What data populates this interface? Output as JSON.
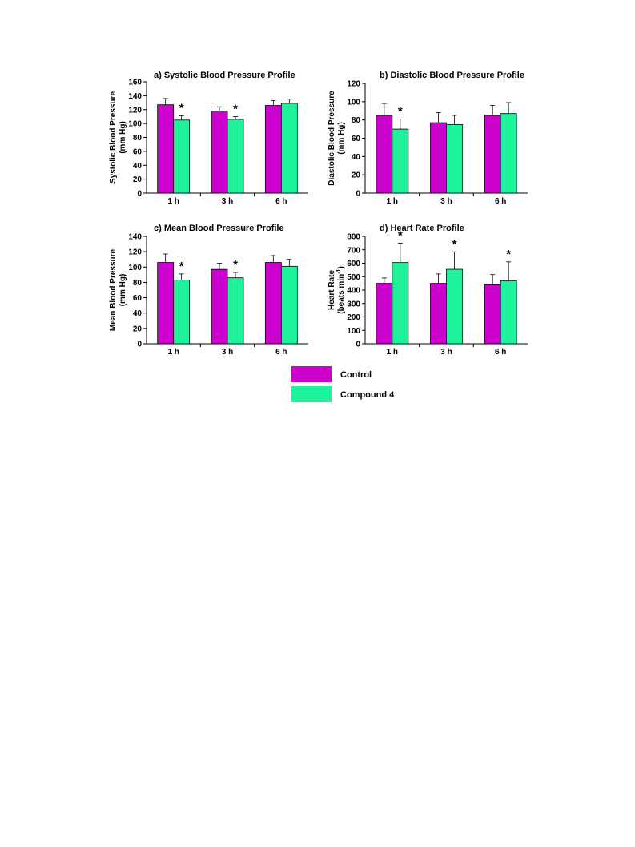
{
  "colors": {
    "control": "#cc00cc",
    "compound4": "#1ef29a"
  },
  "chart_data": [
    {
      "type": "bar",
      "title": "a)  Systolic Blood Pressure Profile",
      "ylabel": [
        "Systolic Blood Pressure",
        "(mm Hg)"
      ],
      "categories": [
        "1 h",
        "3 h",
        "6 h"
      ],
      "ylim": [
        0,
        160
      ],
      "ytick_step": 20,
      "series": [
        {
          "name": "Control",
          "values": [
            127,
            118,
            126
          ],
          "errors": [
            9,
            6,
            7
          ]
        },
        {
          "name": "Compound 4",
          "values": [
            105,
            106,
            129
          ],
          "errors": [
            6,
            4,
            6
          ]
        }
      ],
      "significance": [
        {
          "category_index": 0,
          "series_index": 1,
          "symbol": "*"
        },
        {
          "category_index": 1,
          "series_index": 1,
          "symbol": "*"
        }
      ]
    },
    {
      "type": "bar",
      "title": "b)  Diastolic Blood Pressure Profile",
      "ylabel": [
        "Diastolic Blood Pressure",
        "(mm Hg)"
      ],
      "categories": [
        "1 h",
        "3 h",
        "6 h"
      ],
      "ylim": [
        0,
        120
      ],
      "ytick_step": 20,
      "series": [
        {
          "name": "Control",
          "values": [
            85,
            77,
            85
          ],
          "errors": [
            13,
            11,
            11
          ]
        },
        {
          "name": "Compound 4",
          "values": [
            70,
            75,
            87
          ],
          "errors": [
            11,
            10,
            12
          ]
        }
      ],
      "significance": [
        {
          "category_index": 0,
          "series_index": 1,
          "symbol": "*"
        }
      ]
    },
    {
      "type": "bar",
      "title": "c)  Mean Blood Pressure Profile",
      "ylabel": [
        "Mean Blood Pressure",
        "(mm Hg)"
      ],
      "categories": [
        "1 h",
        "3 h",
        "6 h"
      ],
      "ylim": [
        0,
        140
      ],
      "ytick_step": 20,
      "series": [
        {
          "name": "Control",
          "values": [
            106,
            97,
            106
          ],
          "errors": [
            11,
            8,
            9
          ]
        },
        {
          "name": "Compound 4",
          "values": [
            83,
            86,
            101
          ],
          "errors": [
            8,
            7,
            9
          ]
        }
      ],
      "significance": [
        {
          "category_index": 0,
          "series_index": 1,
          "symbol": "*"
        },
        {
          "category_index": 1,
          "series_index": 1,
          "symbol": "*"
        }
      ]
    },
    {
      "type": "bar",
      "title": "d)  Heart Rate Profile",
      "ylabel": [
        "Heart Rate",
        "(beats min",
        "-1",
        ")"
      ],
      "categories": [
        "1 h",
        "3 h",
        "6 h"
      ],
      "ylim": [
        0,
        800
      ],
      "ytick_step": 100,
      "series": [
        {
          "name": "Control",
          "values": [
            450,
            450,
            440
          ],
          "errors": [
            40,
            70,
            75
          ]
        },
        {
          "name": "Compound 4",
          "values": [
            605,
            555,
            470
          ],
          "errors": [
            145,
            130,
            140
          ]
        }
      ],
      "significance": [
        {
          "category_index": 0,
          "series_index": 1,
          "symbol": "*"
        },
        {
          "category_index": 1,
          "series_index": 1,
          "symbol": "*"
        },
        {
          "category_index": 2,
          "series_index": 1,
          "symbol": "*"
        }
      ]
    }
  ],
  "legend": [
    {
      "label": "Control",
      "color_key": "control"
    },
    {
      "label": "Compound 4",
      "color_key": "compound4"
    }
  ]
}
